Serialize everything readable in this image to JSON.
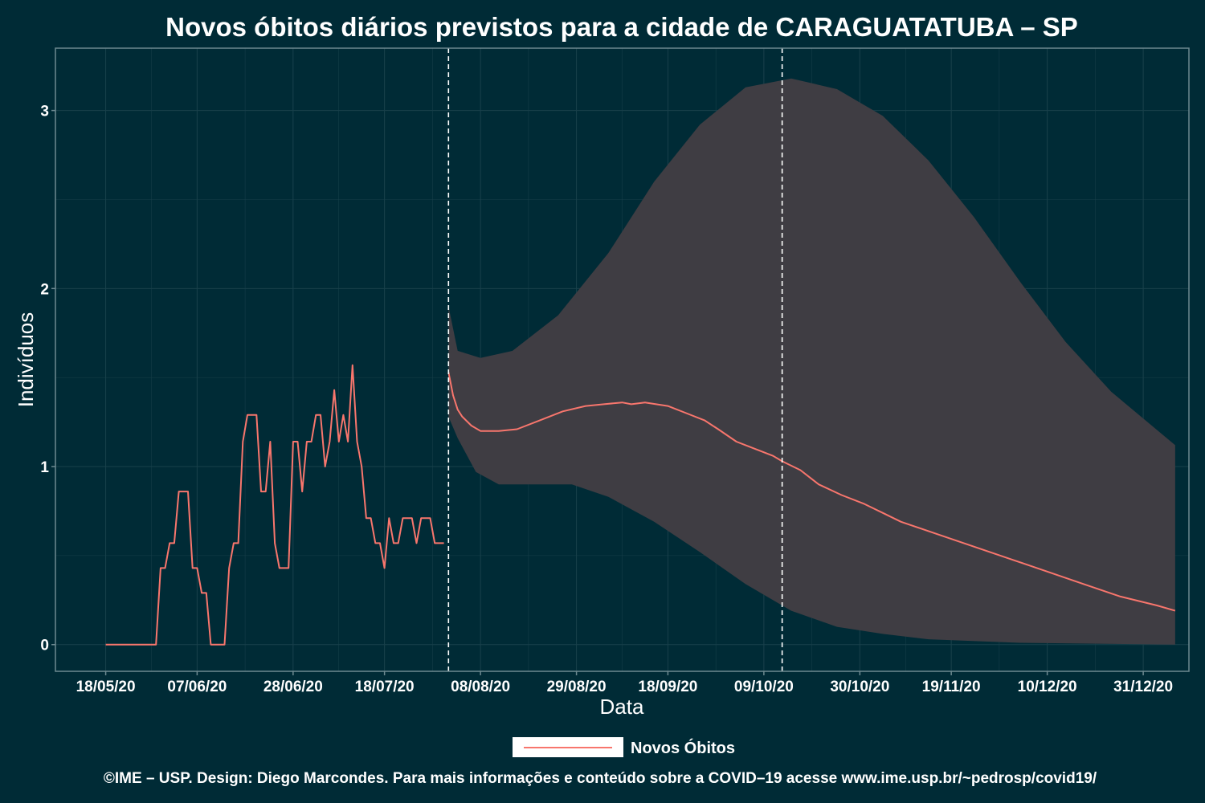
{
  "chart_data": {
    "type": "line",
    "title": "Novos óbitos diários previstos para a cidade de CARAGUATATUBA – SP",
    "xlabel": "Data",
    "ylabel": "Indivíduos",
    "caption": "©IME – USP. Design: Diego Marcondes. Para mais informações e conteúdo sobre a COVID–19 acesse www.ime.usp.br/~pedrosp/covid19/",
    "ylim": [
      -0.15,
      3.35
    ],
    "yticks": [
      0,
      1,
      2,
      3
    ],
    "xlim": [
      "2020-05-07",
      "2021-01-10"
    ],
    "xticks": [
      {
        "date": "2020-05-18",
        "label": "18/05/20"
      },
      {
        "date": "2020-06-07",
        "label": "07/06/20"
      },
      {
        "date": "2020-06-28",
        "label": "28/06/20"
      },
      {
        "date": "2020-07-18",
        "label": "18/07/20"
      },
      {
        "date": "2020-08-08",
        "label": "08/08/20"
      },
      {
        "date": "2020-08-29",
        "label": "29/08/20"
      },
      {
        "date": "2020-09-18",
        "label": "18/09/20"
      },
      {
        "date": "2020-10-09",
        "label": "09/10/20"
      },
      {
        "date": "2020-10-30",
        "label": "30/10/20"
      },
      {
        "date": "2020-11-19",
        "label": "19/11/20"
      },
      {
        "date": "2020-12-10",
        "label": "10/12/20"
      },
      {
        "date": "2020-12-31",
        "label": "31/12/20"
      }
    ],
    "vlines": [
      "2020-08-01",
      "2020-10-13"
    ],
    "grid": true,
    "legend_position": "bottom",
    "colors": {
      "background": "#002b36",
      "line": "#f8766d",
      "band": "#3f3d43",
      "grid": "#19414b",
      "vline": "#ffffff",
      "text": "#ffffff"
    },
    "series": [
      {
        "name": "Novos Óbitos",
        "observed": [
          [
            "2020-05-18",
            0
          ],
          [
            "2020-05-29",
            0
          ],
          [
            "2020-05-30",
            0.43
          ],
          [
            "2020-05-31",
            0.43
          ],
          [
            "2020-06-01",
            0.57
          ],
          [
            "2020-06-02",
            0.57
          ],
          [
            "2020-06-03",
            0.86
          ],
          [
            "2020-06-05",
            0.86
          ],
          [
            "2020-06-06",
            0.43
          ],
          [
            "2020-06-07",
            0.43
          ],
          [
            "2020-06-08",
            0.29
          ],
          [
            "2020-06-09",
            0.29
          ],
          [
            "2020-06-10",
            0
          ],
          [
            "2020-06-13",
            0
          ],
          [
            "2020-06-14",
            0.43
          ],
          [
            "2020-06-15",
            0.57
          ],
          [
            "2020-06-16",
            0.57
          ],
          [
            "2020-06-17",
            1.14
          ],
          [
            "2020-06-18",
            1.29
          ],
          [
            "2020-06-20",
            1.29
          ],
          [
            "2020-06-21",
            0.86
          ],
          [
            "2020-06-22",
            0.86
          ],
          [
            "2020-06-23",
            1.14
          ],
          [
            "2020-06-24",
            0.57
          ],
          [
            "2020-06-25",
            0.43
          ],
          [
            "2020-06-27",
            0.43
          ],
          [
            "2020-06-28",
            1.14
          ],
          [
            "2020-06-29",
            1.14
          ],
          [
            "2020-06-30",
            0.86
          ],
          [
            "2020-07-01",
            1.14
          ],
          [
            "2020-07-02",
            1.14
          ],
          [
            "2020-07-03",
            1.29
          ],
          [
            "2020-07-04",
            1.29
          ],
          [
            "2020-07-05",
            1.0
          ],
          [
            "2020-07-06",
            1.14
          ],
          [
            "2020-07-07",
            1.43
          ],
          [
            "2020-07-08",
            1.14
          ],
          [
            "2020-07-09",
            1.29
          ],
          [
            "2020-07-10",
            1.14
          ],
          [
            "2020-07-11",
            1.57
          ],
          [
            "2020-07-12",
            1.14
          ],
          [
            "2020-07-13",
            1.0
          ],
          [
            "2020-07-14",
            0.71
          ],
          [
            "2020-07-15",
            0.71
          ],
          [
            "2020-07-16",
            0.57
          ],
          [
            "2020-07-17",
            0.57
          ],
          [
            "2020-07-18",
            0.43
          ],
          [
            "2020-07-19",
            0.71
          ],
          [
            "2020-07-20",
            0.57
          ],
          [
            "2020-07-21",
            0.57
          ],
          [
            "2020-07-22",
            0.71
          ],
          [
            "2020-07-24",
            0.71
          ],
          [
            "2020-07-25",
            0.57
          ],
          [
            "2020-07-26",
            0.71
          ],
          [
            "2020-07-28",
            0.71
          ],
          [
            "2020-07-29",
            0.57
          ],
          [
            "2020-07-31",
            0.57
          ]
        ],
        "predicted": [
          [
            "2020-08-01",
            1.53
          ],
          [
            "2020-08-02",
            1.4
          ],
          [
            "2020-08-03",
            1.32
          ],
          [
            "2020-08-04",
            1.28
          ],
          [
            "2020-08-06",
            1.23
          ],
          [
            "2020-08-08",
            1.2
          ],
          [
            "2020-08-12",
            1.2
          ],
          [
            "2020-08-16",
            1.21
          ],
          [
            "2020-08-21",
            1.26
          ],
          [
            "2020-08-26",
            1.31
          ],
          [
            "2020-08-31",
            1.34
          ],
          [
            "2020-09-04",
            1.35
          ],
          [
            "2020-09-08",
            1.36
          ],
          [
            "2020-09-10",
            1.35
          ],
          [
            "2020-09-13",
            1.36
          ],
          [
            "2020-09-18",
            1.34
          ],
          [
            "2020-09-22",
            1.3
          ],
          [
            "2020-09-26",
            1.26
          ],
          [
            "2020-09-29",
            1.21
          ],
          [
            "2020-10-03",
            1.14
          ],
          [
            "2020-10-05",
            1.12
          ],
          [
            "2020-10-08",
            1.09
          ],
          [
            "2020-10-11",
            1.06
          ],
          [
            "2020-10-13",
            1.03
          ],
          [
            "2020-10-17",
            0.98
          ],
          [
            "2020-10-21",
            0.9
          ],
          [
            "2020-10-26",
            0.84
          ],
          [
            "2020-10-31",
            0.79
          ],
          [
            "2020-11-04",
            0.74
          ],
          [
            "2020-11-08",
            0.69
          ],
          [
            "2020-11-16",
            0.62
          ],
          [
            "2020-11-24",
            0.55
          ],
          [
            "2020-12-02",
            0.48
          ],
          [
            "2020-12-10",
            0.41
          ],
          [
            "2020-12-18",
            0.34
          ],
          [
            "2020-12-26",
            0.27
          ],
          [
            "2021-01-03",
            0.22
          ],
          [
            "2021-01-07",
            0.19
          ]
        ],
        "band_upper": [
          [
            "2020-08-01",
            1.9
          ],
          [
            "2020-08-03",
            1.65
          ],
          [
            "2020-08-08",
            1.61
          ],
          [
            "2020-08-15",
            1.65
          ],
          [
            "2020-08-25",
            1.85
          ],
          [
            "2020-09-05",
            2.2
          ],
          [
            "2020-09-15",
            2.6
          ],
          [
            "2020-09-25",
            2.92
          ],
          [
            "2020-10-05",
            3.13
          ],
          [
            "2020-10-15",
            3.18
          ],
          [
            "2020-10-25",
            3.12
          ],
          [
            "2020-11-04",
            2.97
          ],
          [
            "2020-11-14",
            2.72
          ],
          [
            "2020-11-24",
            2.4
          ],
          [
            "2020-12-04",
            2.04
          ],
          [
            "2020-12-14",
            1.7
          ],
          [
            "2020-12-24",
            1.42
          ],
          [
            "2021-01-07",
            1.12
          ]
        ],
        "band_lower": [
          [
            "2020-08-01",
            1.28
          ],
          [
            "2020-08-03",
            1.16
          ],
          [
            "2020-08-07",
            0.97
          ],
          [
            "2020-08-12",
            0.9
          ],
          [
            "2020-08-20",
            0.9
          ],
          [
            "2020-08-28",
            0.9
          ],
          [
            "2020-09-05",
            0.83
          ],
          [
            "2020-09-15",
            0.69
          ],
          [
            "2020-09-25",
            0.52
          ],
          [
            "2020-10-05",
            0.34
          ],
          [
            "2020-10-15",
            0.19
          ],
          [
            "2020-10-25",
            0.1
          ],
          [
            "2020-11-04",
            0.06
          ],
          [
            "2020-11-14",
            0.03
          ],
          [
            "2020-12-04",
            0.01
          ],
          [
            "2021-01-07",
            0.0
          ]
        ]
      }
    ]
  }
}
